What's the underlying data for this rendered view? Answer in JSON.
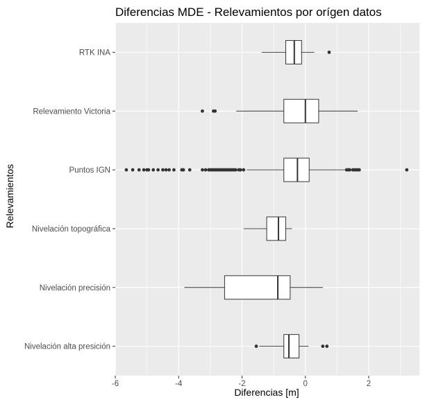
{
  "chart_data": {
    "type": "boxplot",
    "orientation": "horizontal",
    "title": "Diferencias MDE - Relevamientos por orígen datos",
    "xlabel": "Diferencias [m]",
    "ylabel": "Relevamientos",
    "xlim": [
      -6.0,
      3.6
    ],
    "x_ticks": [
      -6,
      -4,
      -2,
      0,
      2
    ],
    "x_tick_labels": [
      "-6",
      "-4",
      "-2",
      "0",
      "2"
    ],
    "grid": true,
    "colors": {
      "panel_background": "#ebebeb",
      "grid": "#ffffff",
      "box_fill": "#ffffff",
      "box_stroke": "#333333",
      "outlier": "#333333"
    },
    "categories": [
      "RTK INA",
      "Relevamiento Victoria",
      "Puntos IGN",
      "Nivelación topográfica",
      "Nivelación precisión",
      "Nivelación alta presición"
    ],
    "boxes": [
      {
        "label": "RTK INA",
        "whisker_low": -1.38,
        "q1": -0.62,
        "median": -0.35,
        "q3": -0.12,
        "whisker_high": 0.28,
        "outliers": [
          0.75
        ]
      },
      {
        "label": "Relevamiento Victoria",
        "whisker_low": -2.18,
        "q1": -0.68,
        "median": 0.0,
        "q3": 0.42,
        "whisker_high": 1.65,
        "outliers": [
          -3.25,
          -2.9,
          -2.85
        ]
      },
      {
        "label": "Puntos IGN",
        "whisker_low": -1.85,
        "q1": -0.68,
        "median": -0.25,
        "q3": 0.12,
        "whisker_high": 1.25,
        "outliers": [
          -5.65,
          -5.45,
          -5.25,
          -5.1,
          -5.0,
          -4.95,
          -4.8,
          -4.65,
          -4.5,
          -4.4,
          -4.3,
          -4.15,
          -3.9,
          -3.85,
          -3.65,
          -3.25,
          -3.15,
          -3.05,
          -3.0,
          -2.95,
          -2.9,
          -2.85,
          -2.8,
          -2.75,
          -2.7,
          -2.65,
          -2.6,
          -2.55,
          -2.5,
          -2.45,
          -2.4,
          -2.35,
          -2.3,
          -2.25,
          -2.2,
          -2.1,
          -2.05,
          -1.95,
          1.3,
          1.35,
          1.4,
          1.5,
          1.55,
          1.6,
          1.65,
          1.7,
          3.2
        ]
      },
      {
        "label": "Nivelación topográfica",
        "whisker_low": -1.95,
        "q1": -1.22,
        "median": -0.85,
        "q3": -0.62,
        "whisker_high": -0.42,
        "outliers": []
      },
      {
        "label": "Nivelación precisión",
        "whisker_low": -3.82,
        "q1": -2.55,
        "median": -0.87,
        "q3": -0.48,
        "whisker_high": 0.55,
        "outliers": []
      },
      {
        "label": "Nivelación alta presición",
        "whisker_low": -1.45,
        "q1": -0.68,
        "median": -0.52,
        "q3": -0.2,
        "whisker_high": 0.1,
        "outliers": [
          -1.55,
          0.55,
          0.68
        ]
      }
    ]
  }
}
